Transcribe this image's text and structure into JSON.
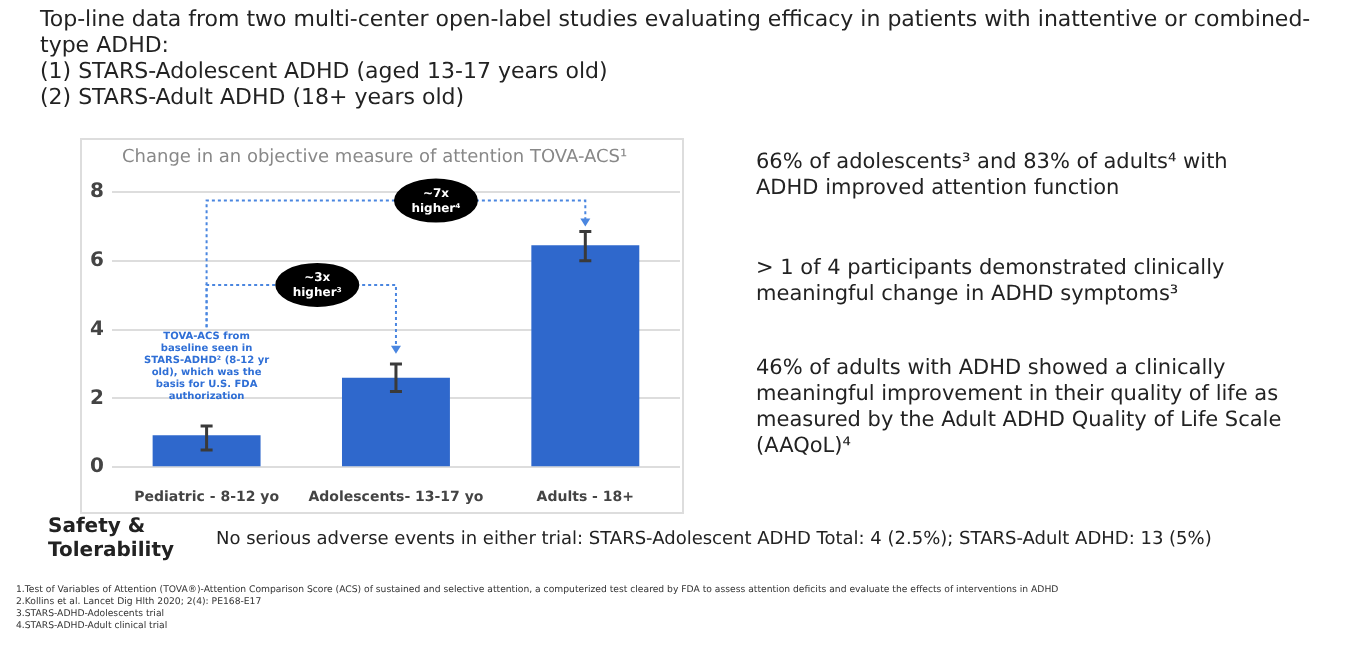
{
  "chart_data": {
    "type": "bar",
    "title": "Top-line data from two multi-center open-label studies evaluating efficacy in patients with inattentive or combined-type ADHD:\n(1) STARS-Adolescent ADHD (aged 13-17 years old)\n(2) STARS-Adult ADHD (18+ years old)",
    "subtitle": "Change in an objective measure of attention TOVA-ACS¹",
    "categories": [
      "Pediatric - 8-12 yo",
      "Adolescents- 13-17 yo",
      "Adults - 18+"
    ],
    "values": [
      0.93,
      2.6,
      6.45
    ],
    "errors": [
      [
        0.5,
        1.2
      ],
      [
        2.2,
        3.0
      ],
      [
        6.0,
        6.85
      ]
    ],
    "color": "#2f68cc",
    "ylim": [
      0,
      8
    ],
    "yticks": [
      0,
      2,
      4,
      6,
      8
    ],
    "grid": "y",
    "legend": false,
    "annotations": [
      "TOVA-ACS from baseline seen in STARS-ADHD² (8-12 yr old), which was the basis for U.S. FDA authorization",
      "~3x higher³",
      "~7x higher⁴",
      "66% of adolescents³ and 83% of adults⁴ with ADHD improved attention function",
      "> 1 of 4 participants demonstrated clinically meaningful change in ADHD symptoms³",
      "46% of adults with ADHD showed a clinically meaningful improvement in their quality of life as measured by the Adult ADHD Quality of Life Scale (AAQoL)⁴",
      "Safety & Tolerability",
      "No serious adverse events in either trial: STARS-Adolescent ADHD Total: 4 (2.5%); STARS-Adult ADHD: 13 (5%)",
      "1.Test of Variables of Attention (TOVA®)-Attention Comparison Score (ACS) of sustained and selective attention, a computerized test cleared by FDA to assess attention deficits and evaluate the effects of interventions in ADHD",
      "2.Kollins et al. Lancet Dig Hlth 2020; 2(4): PE168-E17",
      "3.STARS-ADHD-Adolescents trial",
      "4.STARS-ADHD-Adult clinical trial"
    ]
  }
}
